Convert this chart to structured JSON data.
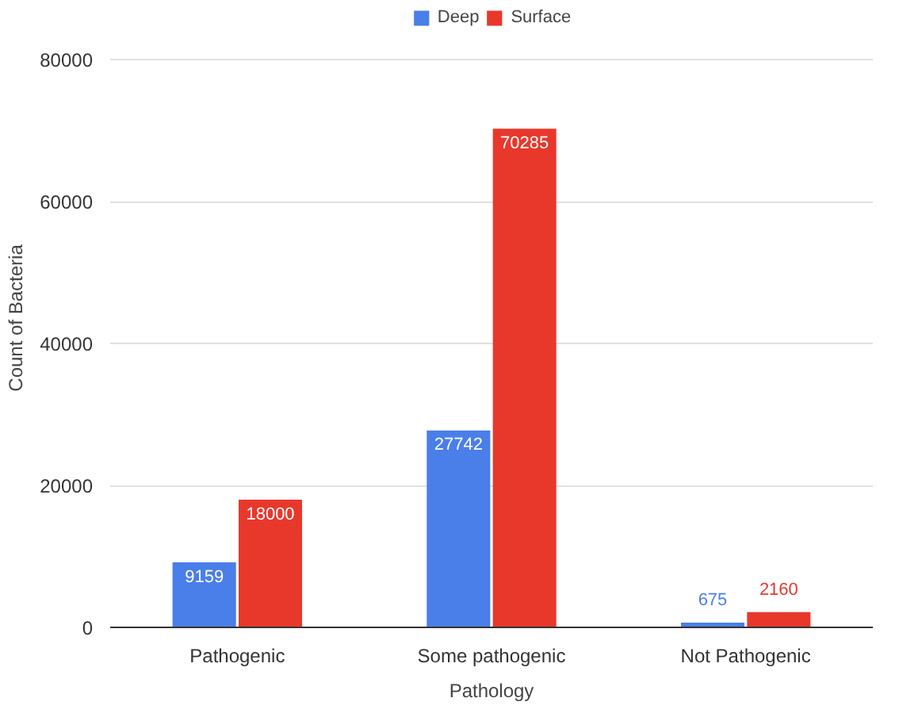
{
  "chart_data": {
    "type": "bar",
    "xlabel": "Pathology",
    "ylabel": "Count of Bacteria",
    "categories": [
      "Pathogenic",
      "Some pathogenic",
      "Not Pathogenic"
    ],
    "series": [
      {
        "name": "Deep",
        "color": "#4a7ee8",
        "values": [
          9159,
          27742,
          675
        ]
      },
      {
        "name": "Surface",
        "color": "#e8382c",
        "values": [
          18000,
          70285,
          2160
        ]
      }
    ],
    "ylim": [
      0,
      80000
    ],
    "yticks": [
      0,
      20000,
      40000,
      60000,
      80000
    ],
    "grid": "y",
    "legend": "top",
    "data_labels": true
  }
}
